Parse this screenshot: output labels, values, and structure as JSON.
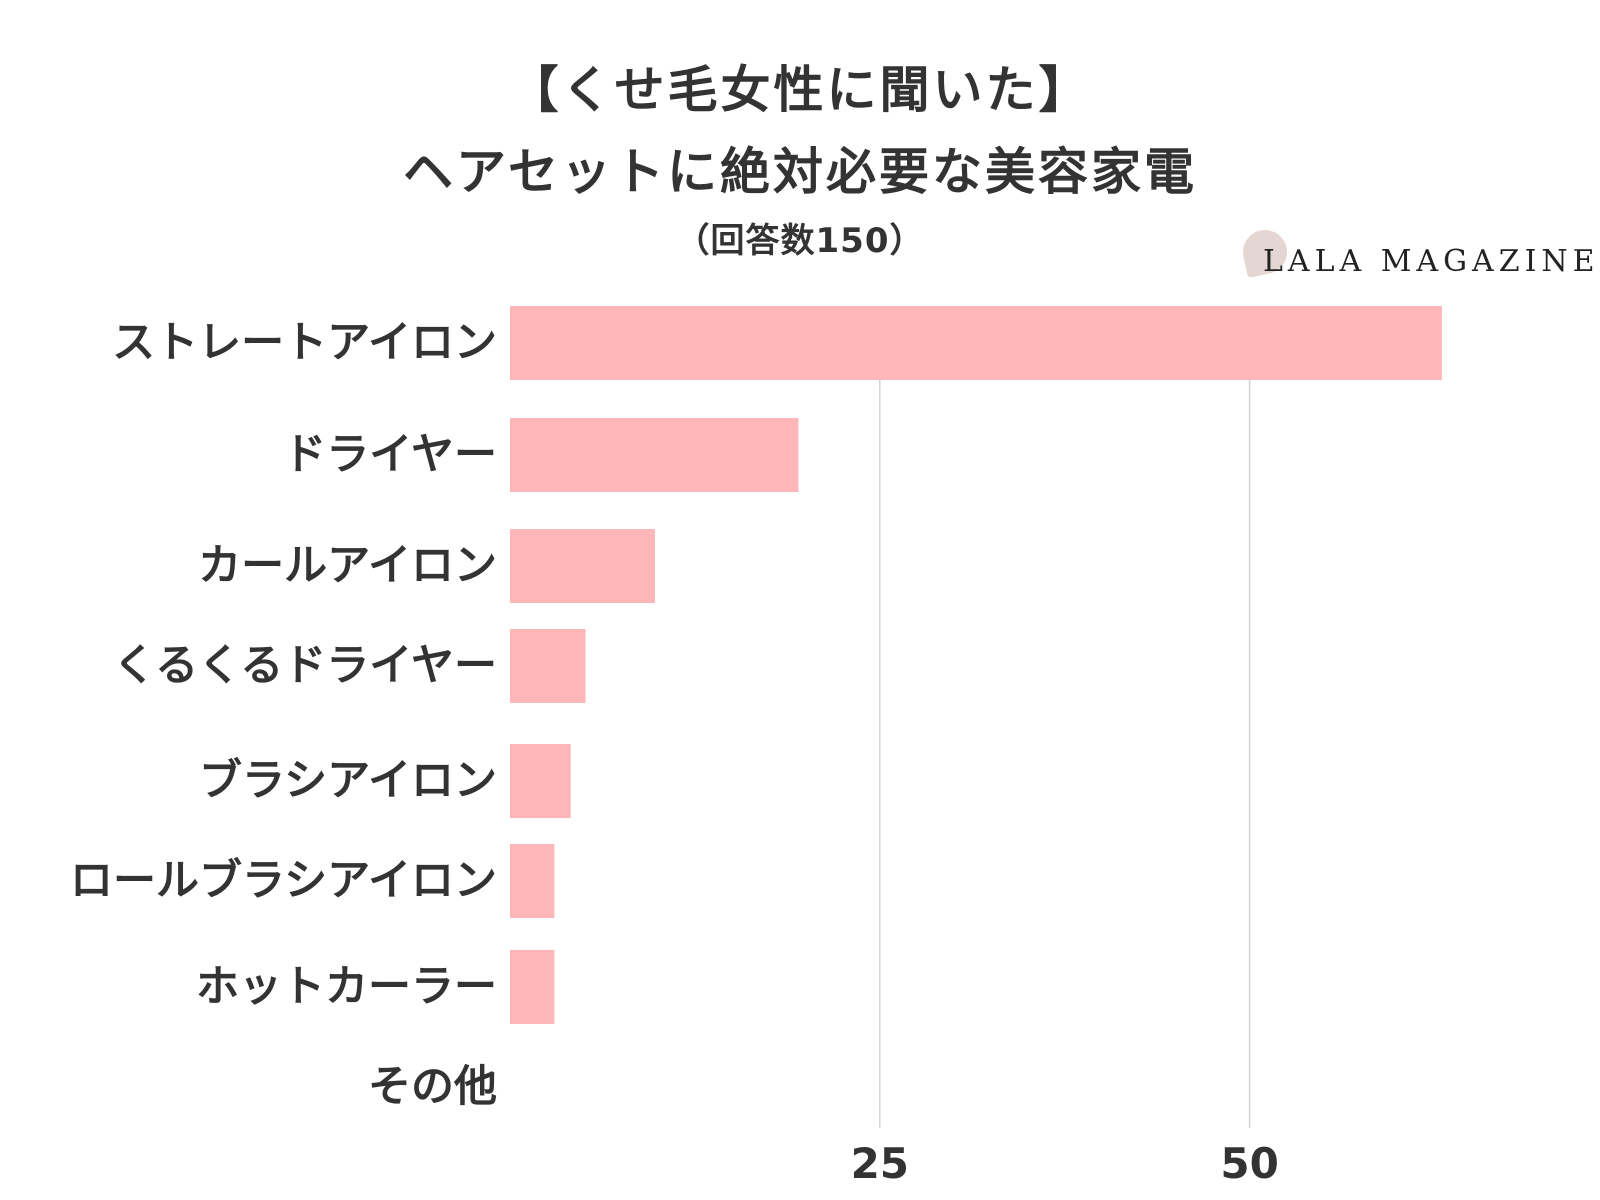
{
  "chart_data": {
    "type": "bar",
    "orientation": "horizontal",
    "title_line1": "【くせ毛女性に聞いた】",
    "title_line2": "ヘアセットに絶対必要な美容家電",
    "subtitle": "（回答数150）",
    "categories": [
      "ストレートアイロン",
      "ドライヤー",
      "カールアイロン",
      "くるくるドライヤー",
      "ブラシアイロン",
      "ロールブラシアイロン",
      "ホットカーラー",
      "その他"
    ],
    "values": [
      63,
      19.5,
      9.8,
      5.1,
      4.1,
      3,
      3,
      0
    ],
    "x_ticks": [
      25,
      50
    ],
    "xlim": [
      0,
      72
    ],
    "xlabel": "",
    "ylabel": "",
    "grid": true,
    "bar_color": "#ffb6b9",
    "grid_color": "#d4d4d4"
  },
  "brand": {
    "name": "LALA MAGAZINE",
    "mark_color": "#e4d7d3"
  }
}
